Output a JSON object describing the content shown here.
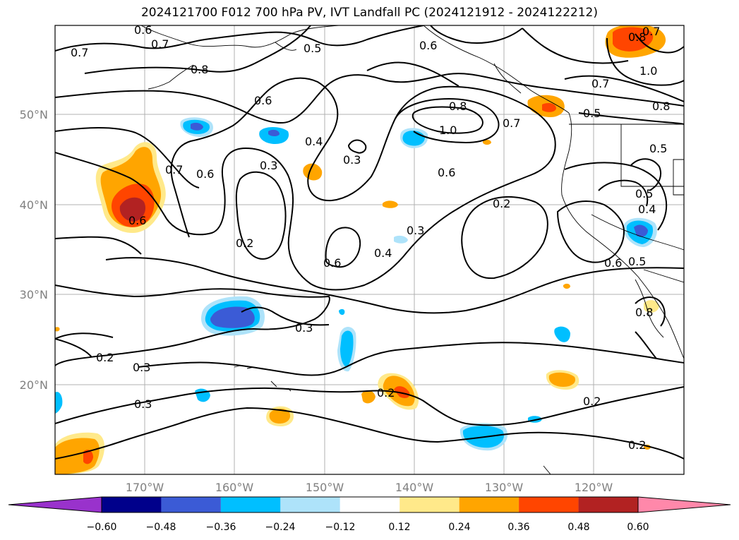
{
  "title": "2024121700 F012 700 hPa PV, IVT Landfall PC (2024121912 - 2024122212)",
  "map": {
    "lat_labels": [
      "50°N",
      "40°N",
      "30°N",
      "20°N"
    ],
    "lon_labels": [
      "170°W",
      "160°W",
      "150°W",
      "140°W",
      "130°W",
      "120°W"
    ]
  },
  "contour_labels": [
    "0.6",
    "0.7",
    "0.5",
    "0.8",
    "0.7",
    "0.6",
    "0.6",
    "0.7",
    "0.8",
    "1.0",
    "0.7",
    "0.8",
    "0.5",
    "0.8",
    "1.0",
    "0.7",
    "0.4",
    "0.3",
    "0.3",
    "0.6",
    "0.2",
    "0.6",
    "0.2",
    "0.3",
    "0.4",
    "0.6",
    "0.5",
    "0.4",
    "0.6",
    "0.5",
    "0.3",
    "0.2",
    "0.3",
    "0.3",
    "0.2",
    "0.2",
    "0.2",
    "0.7",
    "0.6",
    "0.8",
    "0.5"
  ],
  "colorbar": {
    "ticks": [
      "−0.60",
      "−0.48",
      "−0.36",
      "−0.24",
      "−0.12",
      "0.12",
      "0.24",
      "0.36",
      "0.48",
      "0.60"
    ],
    "colors": [
      "#9932cc",
      "#00008b",
      "#3b5bd6",
      "#00bfff",
      "#aee3fa",
      "#ffffff",
      "#ffe98a",
      "#ffa500",
      "#ff4500",
      "#b22222",
      "#ff88aa"
    ]
  }
}
